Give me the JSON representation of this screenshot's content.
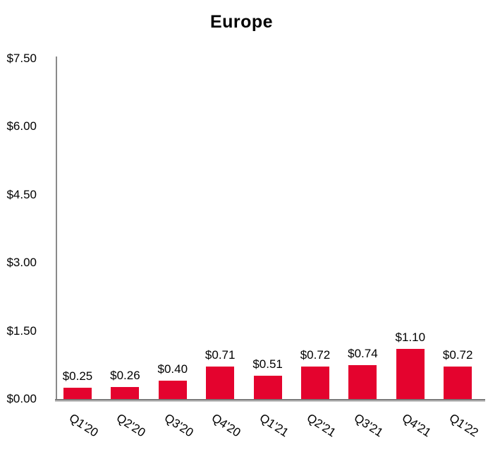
{
  "title": "Europe",
  "colors": {
    "bar": "#e4032e",
    "axis": "#8a8a8a",
    "axis_shadow": "#c6c6c6",
    "text": "#000000",
    "background": "#ffffff"
  },
  "chart_data": {
    "type": "bar",
    "title": "Europe",
    "categories": [
      "Q1'20",
      "Q2'20",
      "Q3'20",
      "Q4'20",
      "Q1'21",
      "Q2'21",
      "Q3'21",
      "Q4'21",
      "Q1'22"
    ],
    "values": [
      0.25,
      0.26,
      0.4,
      0.71,
      0.51,
      0.72,
      0.74,
      1.1,
      0.72
    ],
    "value_labels": [
      "$0.25",
      "$0.26",
      "$0.40",
      "$0.71",
      "$0.51",
      "$0.72",
      "$0.74",
      "$1.10",
      "$0.72"
    ],
    "y_ticks": [
      {
        "value": 0.0,
        "label": "$0.00"
      },
      {
        "value": 1.5,
        "label": "$1.50"
      },
      {
        "value": 3.0,
        "label": "$3.00"
      },
      {
        "value": 4.5,
        "label": "$4.50"
      },
      {
        "value": 6.0,
        "label": "$6.00"
      },
      {
        "value": 7.5,
        "label": "$7.50"
      }
    ],
    "ylim": [
      0,
      7.5
    ],
    "xlabel": "",
    "ylabel": "",
    "grid": false,
    "legend": "none",
    "data_labels": true,
    "x_label_rotation_deg": 33,
    "bar_color": "#e4032e"
  }
}
